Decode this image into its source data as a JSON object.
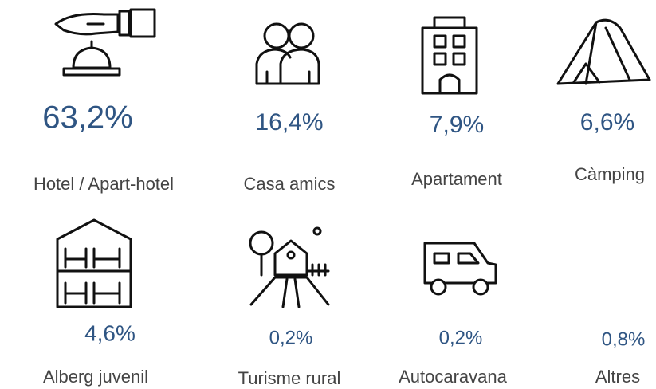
{
  "items": [
    {
      "value": "63,2%",
      "label": "Hotel / Apart-hotel"
    },
    {
      "value": "16,4%",
      "label": "Casa amics"
    },
    {
      "value": "7,9%",
      "label": "Apartament"
    },
    {
      "value": "6,6%",
      "label": "Càmping"
    },
    {
      "value": "4,6%",
      "label": "Alberg juvenil"
    },
    {
      "value": "0,2%",
      "label": "Turisme rural"
    },
    {
      "value": "0,2%",
      "label": "Autocaravana"
    },
    {
      "value": "0,8%",
      "label": "Altres"
    }
  ]
}
